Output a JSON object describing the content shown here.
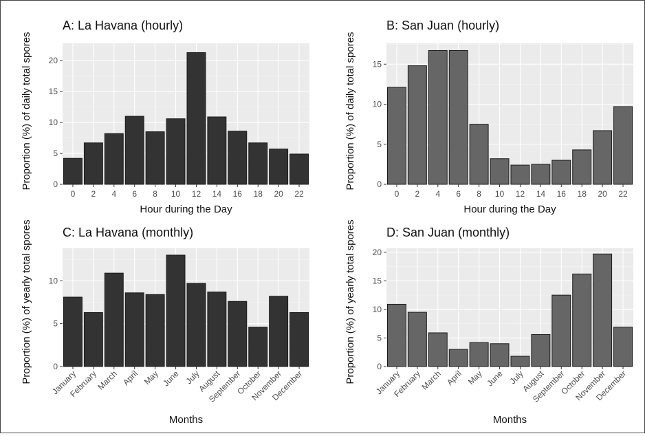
{
  "colors": {
    "dark_bar": "#333333",
    "gray_bar": "#666666",
    "panel_bg": "#ebebeb",
    "grid": "#ffffff"
  },
  "chart_data": [
    {
      "id": "A",
      "type": "bar",
      "title": "A: La Havana (hourly)",
      "xlabel": "Hour during the Day",
      "ylabel": "Proportion (%) of daily total spores",
      "categories": [
        "0",
        "2",
        "4",
        "6",
        "8",
        "10",
        "12",
        "14",
        "16",
        "18",
        "20",
        "22"
      ],
      "values": [
        4.2,
        6.7,
        8.2,
        11.0,
        8.5,
        10.6,
        21.3,
        10.9,
        8.6,
        6.7,
        5.7,
        4.9
      ],
      "ylim": [
        0,
        22.8
      ],
      "yticks": [
        0,
        5,
        10,
        15,
        20
      ],
      "bar_color": "#333333",
      "rotate_x": false,
      "grid": true
    },
    {
      "id": "B",
      "type": "bar",
      "title": "B: San Juan (hourly)",
      "xlabel": "Hour during the Day",
      "ylabel": "Proportion (%) of daily total spores",
      "categories": [
        "0",
        "2",
        "4",
        "6",
        "8",
        "10",
        "12",
        "14",
        "16",
        "18",
        "20",
        "22"
      ],
      "values": [
        12.1,
        14.8,
        16.7,
        16.7,
        7.5,
        3.2,
        2.4,
        2.5,
        3.0,
        4.3,
        6.7,
        9.7
      ],
      "ylim": [
        0,
        17.6
      ],
      "yticks": [
        0,
        5,
        10,
        15
      ],
      "bar_color": "#666666",
      "rotate_x": false,
      "grid": true
    },
    {
      "id": "C",
      "type": "bar",
      "title": "C: La Havana (monthly)",
      "xlabel": "Months",
      "ylabel": "Proportion (%) of yearly total spores",
      "categories": [
        "January",
        "February",
        "March",
        "April",
        "May",
        "June",
        "July",
        "August",
        "September",
        "October",
        "November",
        "December"
      ],
      "values": [
        8.1,
        6.3,
        10.9,
        8.6,
        8.4,
        13.0,
        9.7,
        8.7,
        7.6,
        4.6,
        8.2,
        6.3
      ],
      "ylim": [
        0,
        13.8
      ],
      "yticks": [
        0,
        5,
        10
      ],
      "bar_color": "#333333",
      "rotate_x": true,
      "grid": true
    },
    {
      "id": "D",
      "type": "bar",
      "title": "D: San Juan (monthly)",
      "xlabel": "Months",
      "ylabel": "Proportion (%) of yearly total spores",
      "categories": [
        "January",
        "February",
        "March",
        "April",
        "May",
        "June",
        "July",
        "August",
        "September",
        "October",
        "November",
        "December"
      ],
      "values": [
        10.9,
        9.5,
        5.9,
        3.0,
        4.2,
        4.0,
        1.8,
        5.6,
        12.5,
        16.2,
        19.7,
        6.9
      ],
      "ylim": [
        0,
        20.7
      ],
      "yticks": [
        0,
        5,
        10,
        15,
        20
      ],
      "bar_color": "#666666",
      "rotate_x": true,
      "grid": true
    }
  ]
}
